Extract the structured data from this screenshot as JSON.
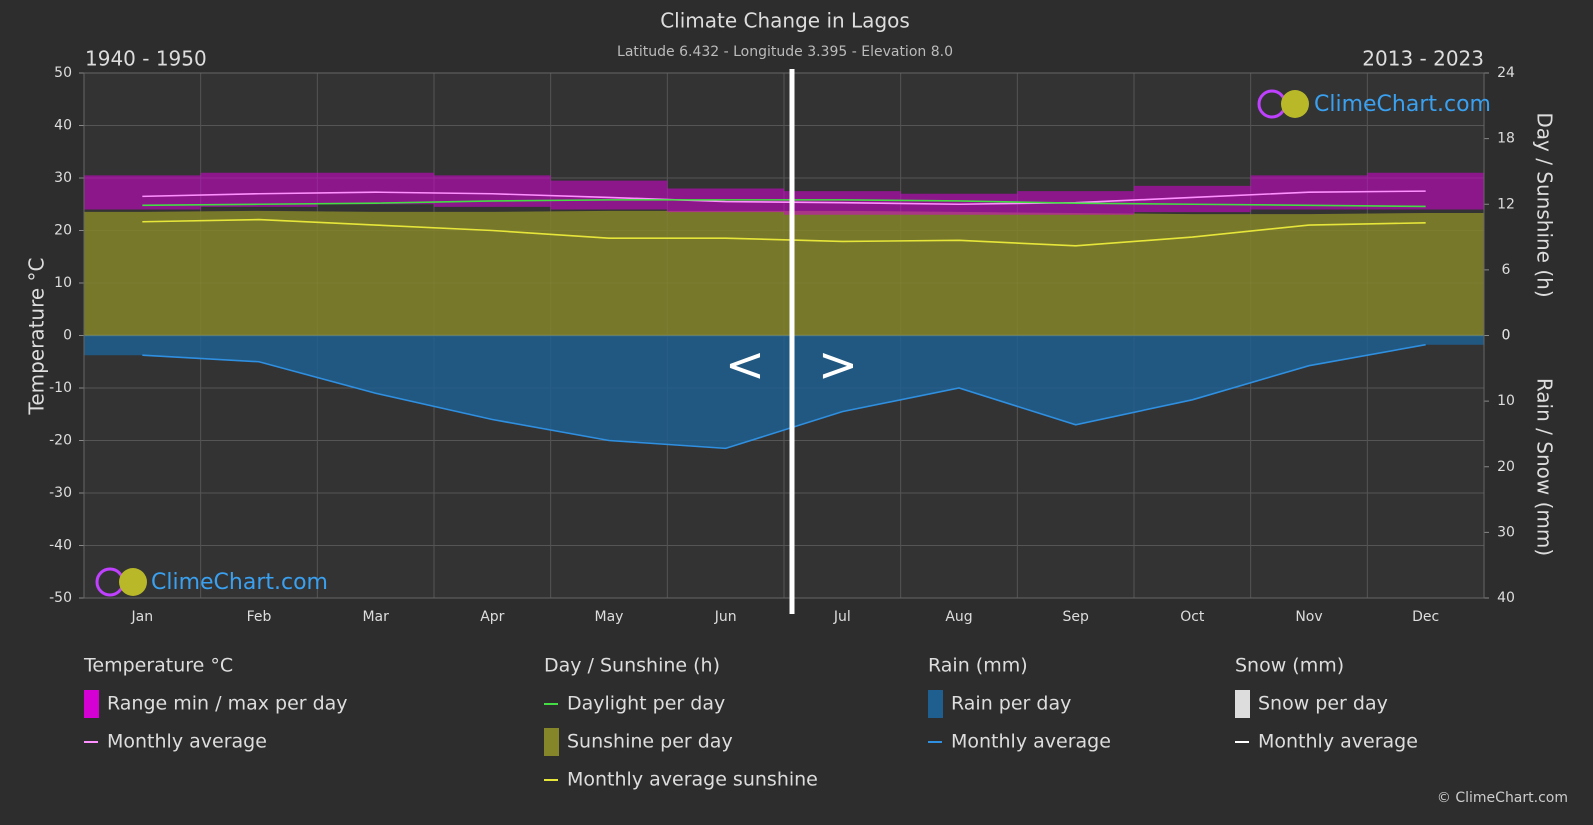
{
  "chart_data": {
    "type": "climate",
    "title": "Climate Change in Lagos",
    "subtitle": "Latitude 6.432 - Longitude 3.395 - Elevation 8.0",
    "period_left": "1940 - 1950",
    "period_right": "2013 - 2023",
    "nav_prev": "<",
    "nav_next": ">",
    "logo": "ClimeChart.com",
    "copyright": "© ClimeChart.com",
    "categories": [
      "Jan",
      "Feb",
      "Mar",
      "Apr",
      "May",
      "Jun",
      "Jul",
      "Aug",
      "Sep",
      "Oct",
      "Nov",
      "Dec"
    ],
    "ylabel": "Temperature °C",
    "ylim": [
      -50,
      50
    ],
    "yticks": [
      -50,
      -40,
      -30,
      -20,
      -10,
      0,
      10,
      20,
      30,
      40,
      50
    ],
    "y2label": "Day / Sunshine (h)",
    "y2lim": [
      0,
      24
    ],
    "y2ticks": [
      0,
      6,
      12,
      18,
      24
    ],
    "y3label": "Rain / Snow (mm)",
    "y3lim": [
      0,
      40
    ],
    "y3ticks": [
      0,
      10,
      20,
      30,
      40
    ],
    "grid": true,
    "groups": [
      {
        "title": "Temperature °C",
        "series": [
          {
            "name": "Range min / max per day",
            "kind": "range",
            "color": "#d400d4",
            "axis": "y",
            "low": [
              24,
              24.5,
              25,
              24.5,
              24,
              23.5,
              23,
              23,
              23,
              23.5,
              24,
              24
            ],
            "high": [
              30.5,
              31,
              31,
              30.5,
              29.5,
              28,
              27.5,
              27,
              27.5,
              28.5,
              30.5,
              31
            ]
          },
          {
            "name": "Monthly average",
            "kind": "line",
            "color": "#ff90ff",
            "axis": "y",
            "values": [
              26.5,
              27,
              27.3,
              27,
              26.3,
              25.5,
              25.3,
              25,
              25.3,
              26.3,
              27.3,
              27.5
            ]
          }
        ]
      },
      {
        "title": "Day / Sunshine (h)",
        "series": [
          {
            "name": "Daylight per day",
            "kind": "line",
            "color": "#44dd44",
            "axis": "y2",
            "values": [
              11.9,
              12,
              12.1,
              12.3,
              12.4,
              12.4,
              12.4,
              12.3,
              12.1,
              12,
              11.9,
              11.8
            ]
          },
          {
            "name": "Sunshine per day",
            "kind": "area",
            "color": "#85852a",
            "axis": "y2",
            "values": [
              11.3,
              11.4,
              11.3,
              11.3,
              11.4,
              11.4,
              11.4,
              11.3,
              11.2,
              11.1,
              11.1,
              11.2
            ]
          },
          {
            "name": "Monthly average sunshine",
            "kind": "line",
            "color": "#e6e63a",
            "axis": "y2",
            "values": [
              10.4,
              10.6,
              10.1,
              9.6,
              8.9,
              8.9,
              8.6,
              8.7,
              8.2,
              9,
              10.1,
              10.3
            ]
          }
        ]
      },
      {
        "title": "Rain (mm)",
        "series": [
          {
            "name": "Rain per day",
            "kind": "area",
            "color": "#1f5f8f",
            "axis": "y3",
            "values": [
              3,
              4,
              8.8,
              12.8,
              16,
              17.2,
              11.6,
              8,
              13.6,
              9.8,
              4.6,
              1.4
            ]
          },
          {
            "name": "Monthly average",
            "kind": "line",
            "color": "#2f8fe0",
            "axis": "y3",
            "values": [
              3,
              4,
              8.8,
              12.8,
              16,
              17.2,
              11.6,
              8,
              13.6,
              9.8,
              4.6,
              1.4
            ]
          }
        ]
      },
      {
        "title": "Snow (mm)",
        "series": [
          {
            "name": "Snow per day",
            "kind": "legend-box",
            "color": "#dddddd"
          },
          {
            "name": "Monthly average",
            "kind": "legend-line",
            "color": "#ffffff"
          }
        ]
      }
    ]
  }
}
